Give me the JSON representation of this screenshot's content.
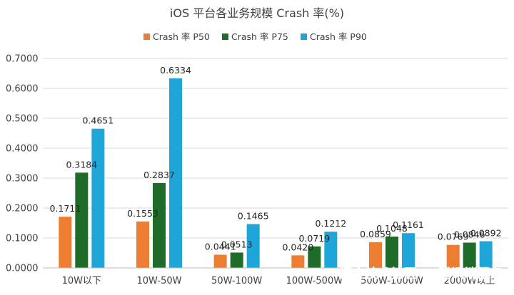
{
  "chart_data": {
    "type": "bar",
    "title": "iOS 平台各业务规模 Crash 率(%)",
    "categories": [
      "10W以下",
      "10W-50W",
      "50W-100W",
      "100W-500W",
      "500W-1000W",
      "2000W以上"
    ],
    "series": [
      {
        "name": "Crash 率 P50",
        "color": "#ED7D31",
        "values": [
          0.1711,
          0.1553,
          0.0441,
          0.042,
          0.0859,
          0.0769
        ]
      },
      {
        "name": "Crash 率 P75",
        "color": "#1E6B2A",
        "values": [
          0.3184,
          0.2837,
          0.0513,
          0.0719,
          0.1048,
          0.0846
        ]
      },
      {
        "name": "Crash 率 P90",
        "color": "#1EA6D8",
        "values": [
          0.4651,
          0.6334,
          0.1465,
          0.1212,
          0.1161,
          0.0892
        ]
      }
    ],
    "yticks": [
      "0.0000",
      "0.1000",
      "0.2000",
      "0.3000",
      "0.4000",
      "0.5000",
      "0.6000",
      "0.7000"
    ],
    "ylim": [
      0,
      0.7
    ],
    "grid": true,
    "legend_position": "top-center",
    "xlabel": "",
    "ylabel": ""
  },
  "watermark": "掘金技术社区 @ 腾讯端服务",
  "gridline_color": "#D9D9D9",
  "axis_color": "#BFBFBF"
}
